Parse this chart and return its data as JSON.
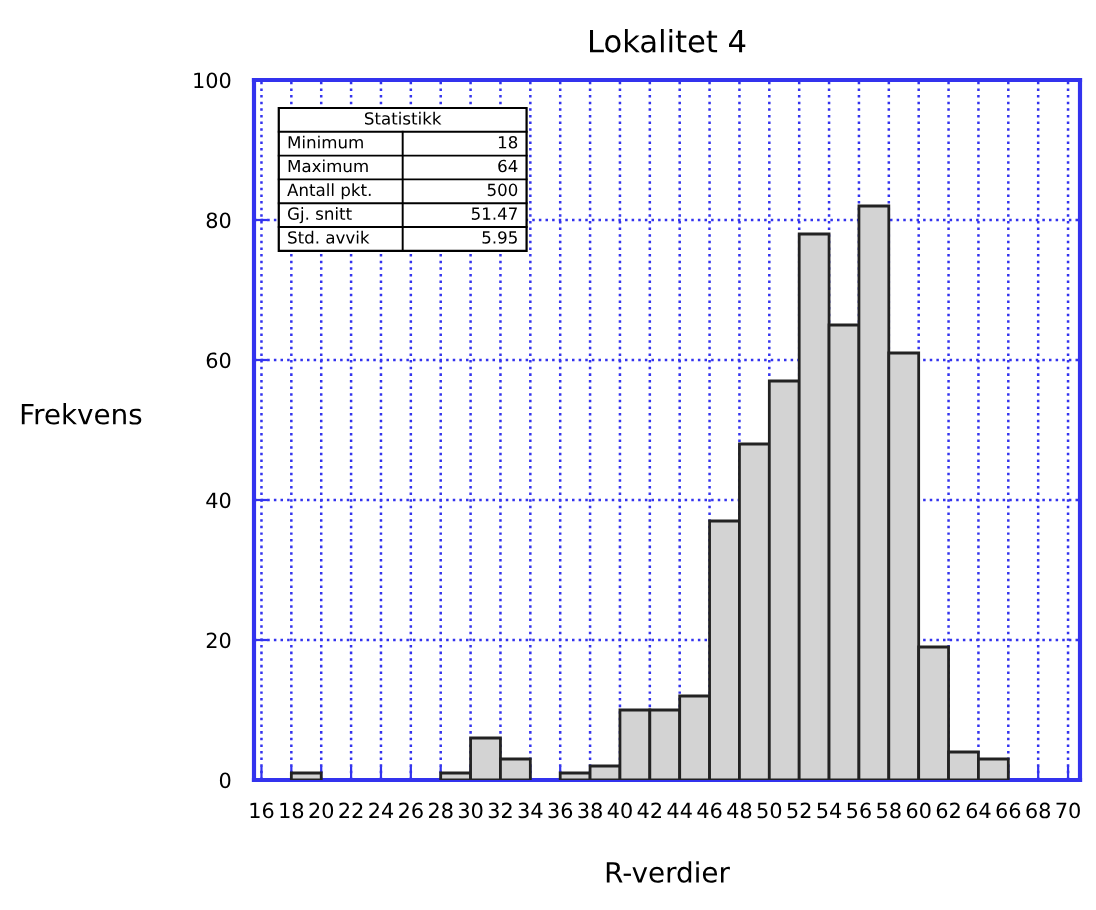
{
  "chart_data": {
    "type": "histogram",
    "title": "Lokalitet 4",
    "xlabel": "R-verdier",
    "ylabel": "Frekvens",
    "bins": [
      16,
      18,
      20,
      22,
      24,
      26,
      28,
      30,
      32,
      34,
      36,
      38,
      40,
      42,
      44,
      46,
      48,
      50,
      52,
      54,
      56,
      58,
      60,
      62,
      64,
      66,
      68,
      70
    ],
    "values": [
      0,
      1,
      0,
      0,
      0,
      0,
      1,
      6,
      3,
      0,
      1,
      2,
      10,
      10,
      12,
      37,
      48,
      57,
      78,
      65,
      82,
      61,
      19,
      4,
      3,
      0,
      0
    ],
    "color": "#d3d3d3",
    "xlim": [
      15.5,
      70.8
    ],
    "xticks": [
      16,
      18,
      20,
      22,
      24,
      26,
      28,
      30,
      32,
      34,
      36,
      38,
      40,
      42,
      44,
      46,
      48,
      50,
      52,
      54,
      56,
      58,
      60,
      62,
      64,
      66,
      68,
      70
    ],
    "ylim": [
      0,
      100
    ],
    "yticks": [
      0,
      20,
      40,
      60,
      80,
      100
    ],
    "grid": true,
    "annotations": [
      "Statistikk",
      "Minimum",
      "18",
      "Maximum",
      "64",
      "Antall pkt.",
      "500",
      "Gj. snitt",
      "51.47",
      "Std. avvik",
      "5.95"
    ]
  }
}
